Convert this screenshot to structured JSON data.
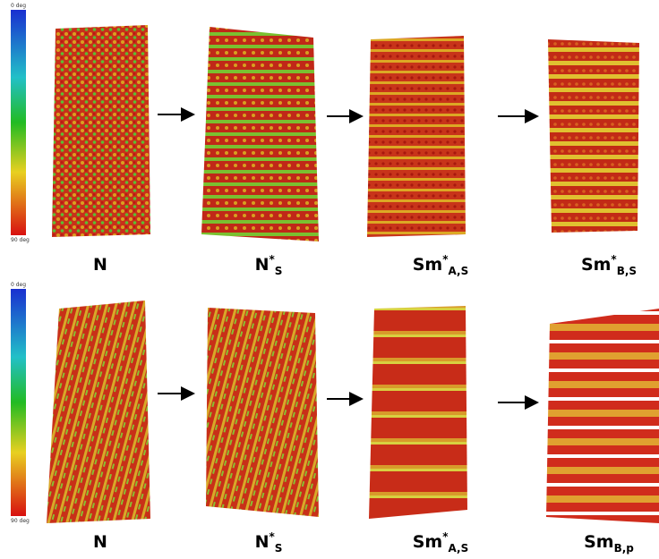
{
  "rows": [
    {
      "colorbar": {
        "top": "0 deg",
        "bottom": "90 deg"
      },
      "panels": [
        {
          "label": {
            "main": "N"
          }
        },
        {
          "label": {
            "main": "N",
            "sup": "*",
            "sub": "S"
          }
        },
        {
          "label": {
            "main": "Sm",
            "sup": "*",
            "sub": "A,S"
          }
        },
        {
          "label": {
            "main": "Sm",
            "sup": "*",
            "sub": "B,S"
          }
        }
      ]
    },
    {
      "colorbar": {
        "top": "0 deg",
        "bottom": "90 deg"
      },
      "panels": [
        {
          "label": {
            "main": "N"
          }
        },
        {
          "label": {
            "main": "N",
            "sup": "*",
            "sub": "S"
          }
        },
        {
          "label": {
            "main": "Sm",
            "sup": "*",
            "sub": "A,S"
          }
        },
        {
          "label": {
            "main": "Sm",
            "sub": "B,p"
          }
        }
      ]
    }
  ]
}
